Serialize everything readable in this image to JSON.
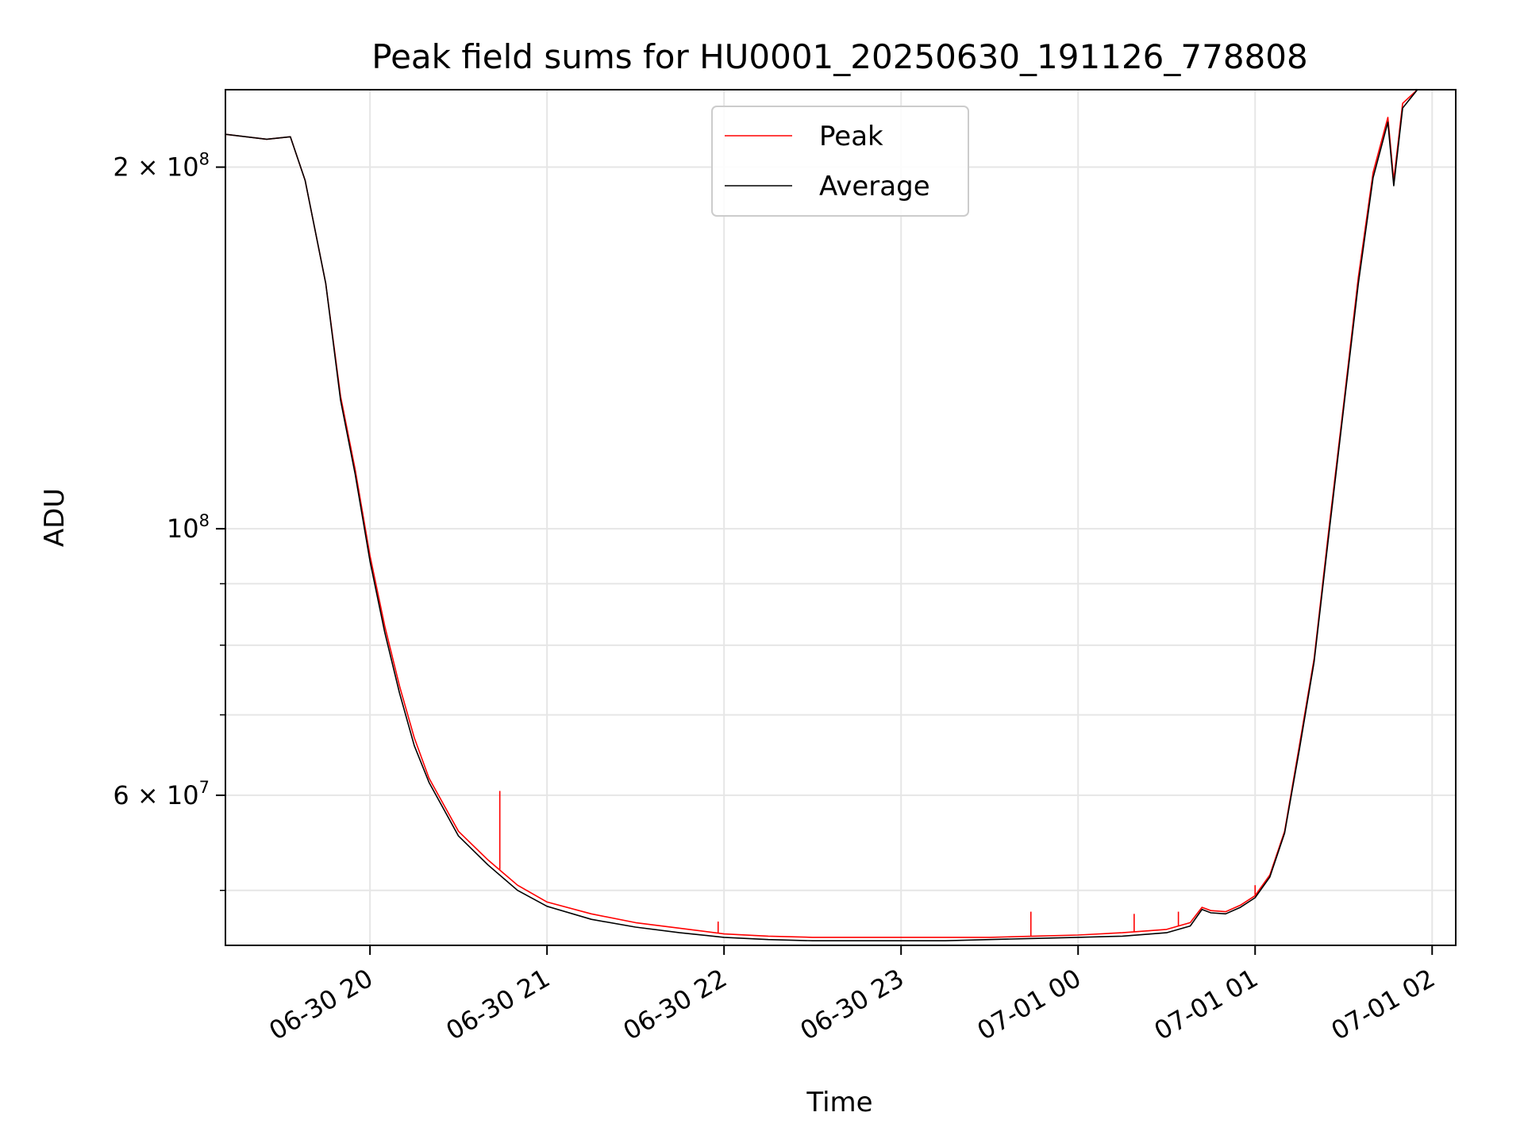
{
  "chart_data": {
    "type": "line",
    "title": "Peak field sums for HU0001_20250630_191126_778808",
    "xlabel": "Time",
    "ylabel": "ADU",
    "yscale": "log",
    "grid": true,
    "legend_position": "top-center",
    "xlim": [
      "2025-06-30 19:11",
      "2025-07-01 02:08"
    ],
    "ylim": [
      45000000,
      232000000
    ],
    "x_ticks": [
      {
        "value": "2025-06-30 20:00",
        "label": "06-30 20"
      },
      {
        "value": "2025-06-30 21:00",
        "label": "06-30 21"
      },
      {
        "value": "2025-06-30 22:00",
        "label": "06-30 22"
      },
      {
        "value": "2025-06-30 23:00",
        "label": "06-30 23"
      },
      {
        "value": "2025-07-01 00:00",
        "label": "07-01 00"
      },
      {
        "value": "2025-07-01 01:00",
        "label": "07-01 01"
      },
      {
        "value": "2025-07-01 02:00",
        "label": "07-01 02"
      }
    ],
    "y_ticks": [
      {
        "value": 60000000,
        "base": "6 × 10",
        "exp": "7"
      },
      {
        "value": 100000000,
        "base": "10",
        "exp": "8"
      },
      {
        "value": 200000000,
        "base": "2 × 10",
        "exp": "8"
      }
    ],
    "y_minor_ticks": [
      50000000,
      70000000,
      80000000,
      90000000
    ],
    "series": [
      {
        "name": "Peak",
        "color": "#ff0000",
        "x": [
          "2025-06-30 19:11",
          "2025-06-30 19:25",
          "2025-06-30 19:33",
          "2025-06-30 19:38",
          "2025-06-30 19:45",
          "2025-06-30 19:50",
          "2025-06-30 19:55",
          "2025-06-30 20:00",
          "2025-06-30 20:05",
          "2025-06-30 20:10",
          "2025-06-30 20:15",
          "2025-06-30 20:20",
          "2025-06-30 20:30",
          "2025-06-30 20:40",
          "2025-06-30 20:50",
          "2025-06-30 21:00",
          "2025-06-30 21:15",
          "2025-06-30 21:30",
          "2025-06-30 21:45",
          "2025-06-30 22:00",
          "2025-06-30 22:15",
          "2025-06-30 22:30",
          "2025-06-30 22:45",
          "2025-06-30 23:00",
          "2025-06-30 23:15",
          "2025-06-30 23:30",
          "2025-06-30 23:45",
          "2025-07-01 00:00",
          "2025-07-01 00:15",
          "2025-07-01 00:30",
          "2025-07-01 00:38",
          "2025-07-01 00:42",
          "2025-07-01 00:45",
          "2025-07-01 00:50",
          "2025-07-01 00:55",
          "2025-07-01 01:00",
          "2025-07-01 01:05",
          "2025-07-01 01:10",
          "2025-07-01 01:15",
          "2025-07-01 01:20",
          "2025-07-01 01:25",
          "2025-07-01 01:30",
          "2025-07-01 01:35",
          "2025-07-01 01:40",
          "2025-07-01 01:45",
          "2025-07-01 01:47",
          "2025-07-01 01:50",
          "2025-07-01 01:55"
        ],
        "values": [
          213000000,
          211000000,
          212000000,
          195000000,
          160000000,
          129000000,
          112000000,
          95000000,
          83000000,
          74000000,
          67000000,
          62000000,
          56000000,
          53000000,
          50500000,
          48900000,
          47800000,
          47000000,
          46500000,
          46000000,
          45800000,
          45700000,
          45700000,
          45700000,
          45700000,
          45700000,
          45800000,
          45900000,
          46100000,
          46400000,
          47000000,
          48400000,
          48100000,
          48000000,
          48600000,
          49500000,
          51500000,
          56000000,
          66000000,
          78000000,
          100000000,
          127000000,
          162000000,
          198000000,
          220000000,
          195000000,
          226000000,
          232000000
        ],
        "spikes": [
          {
            "x": "2025-06-30 20:44",
            "value": 60500000
          },
          {
            "x": "2025-06-30 21:58",
            "value": 47100000
          },
          {
            "x": "2025-06-30 23:44",
            "value": 48000000
          },
          {
            "x": "2025-07-01 00:19",
            "value": 47800000
          },
          {
            "x": "2025-07-01 00:34",
            "value": 48000000
          },
          {
            "x": "2025-07-01 01:00",
            "value": 50500000
          }
        ]
      },
      {
        "name": "Average",
        "color": "#000000",
        "x": [
          "2025-06-30 19:11",
          "2025-06-30 19:25",
          "2025-06-30 19:33",
          "2025-06-30 19:38",
          "2025-06-30 19:45",
          "2025-06-30 19:50",
          "2025-06-30 19:55",
          "2025-06-30 20:00",
          "2025-06-30 20:05",
          "2025-06-30 20:10",
          "2025-06-30 20:15",
          "2025-06-30 20:20",
          "2025-06-30 20:30",
          "2025-06-30 20:40",
          "2025-06-30 20:50",
          "2025-06-30 21:00",
          "2025-06-30 21:15",
          "2025-06-30 21:30",
          "2025-06-30 21:45",
          "2025-06-30 22:00",
          "2025-06-30 22:15",
          "2025-06-30 22:30",
          "2025-06-30 22:45",
          "2025-06-30 23:00",
          "2025-06-30 23:15",
          "2025-06-30 23:30",
          "2025-06-30 23:45",
          "2025-07-01 00:00",
          "2025-07-01 00:15",
          "2025-07-01 00:30",
          "2025-07-01 00:38",
          "2025-07-01 00:42",
          "2025-07-01 00:45",
          "2025-07-01 00:50",
          "2025-07-01 00:55",
          "2025-07-01 01:00",
          "2025-07-01 01:05",
          "2025-07-01 01:10",
          "2025-07-01 01:15",
          "2025-07-01 01:20",
          "2025-07-01 01:25",
          "2025-07-01 01:30",
          "2025-07-01 01:35",
          "2025-07-01 01:40",
          "2025-07-01 01:45",
          "2025-07-01 01:47",
          "2025-07-01 01:50",
          "2025-07-01 01:55"
        ],
        "values": [
          213000000,
          211000000,
          212000000,
          195000000,
          160000000,
          128000000,
          111000000,
          94000000,
          82000000,
          73000000,
          66000000,
          61500000,
          55500000,
          52500000,
          50000000,
          48500000,
          47300000,
          46600000,
          46100000,
          45700000,
          45500000,
          45400000,
          45400000,
          45400000,
          45400000,
          45500000,
          45600000,
          45700000,
          45800000,
          46100000,
          46700000,
          48200000,
          47900000,
          47800000,
          48400000,
          49300000,
          51300000,
          55800000,
          65500000,
          77500000,
          99000000,
          126000000,
          160000000,
          196000000,
          218000000,
          193000000,
          224000000,
          232000000
        ]
      }
    ]
  }
}
